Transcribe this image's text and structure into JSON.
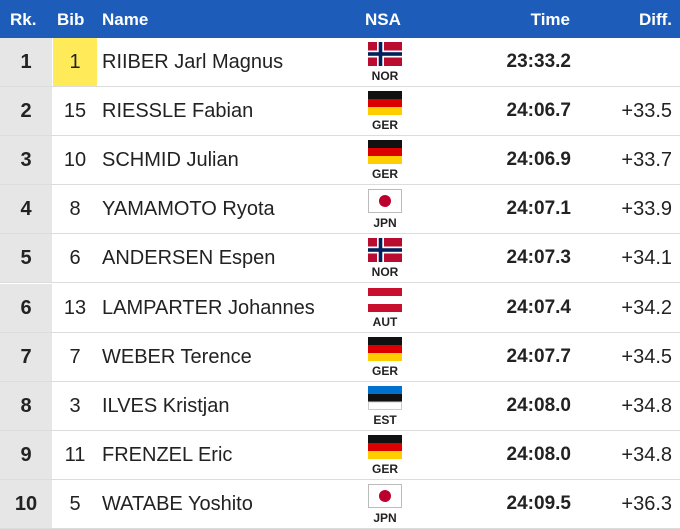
{
  "table": {
    "header": [
      "Rk.",
      "Bib",
      "Name",
      "NSA",
      "Time",
      "Diff."
    ],
    "rows": [
      {
        "rank": 1,
        "bib": 1,
        "name": "RIIBER Jarl Magnus",
        "nsa": "NOR",
        "time": "23:33.2"
      },
      {
        "rank": 2,
        "bib": 15,
        "name": "RIESSLE Fabian",
        "nsa": "GER",
        "time": "24:06.7",
        "diff": "+33.5"
      },
      {
        "rank": 3,
        "bib": 10,
        "name": "SCHMID Julian",
        "nsa": "GER",
        "time": "24:06.9",
        "diff": "+33.7"
      },
      {
        "rank": 4,
        "bib": 8,
        "name": "YAMAMOTO Ryota",
        "nsa": "JPN",
        "time": "24:07.1",
        "diff": "+33.9"
      },
      {
        "rank": 5,
        "bib": 6,
        "name": "ANDERSEN Espen",
        "nsa": "NOR",
        "time": "24:07.3",
        "diff": "+34.1"
      },
      {
        "rank": 6,
        "bib": 13,
        "name": "LAMPARTER Johannes",
        "nsa": "AUT",
        "time": "24:07.4",
        "diff": "+34.2"
      },
      {
        "rank": 7,
        "bib": 7,
        "name": "WEBER Terence",
        "nsa": "GER",
        "time": "24:07.7",
        "diff": "+34.5"
      },
      {
        "rank": 8,
        "bib": 3,
        "name": "ILVES Kristjan",
        "nsa": "EST",
        "time": "24:08.0",
        "diff": "+34.8"
      },
      {
        "rank": 9,
        "bib": 11,
        "name": "FRENZEL Eric",
        "nsa": "GER",
        "time": "24:08.0",
        "diff": "+34.8"
      },
      {
        "rank": 10,
        "bib": 5,
        "name": "WATABE Yoshito",
        "nsa": "JPN",
        "time": "24:09.5",
        "diff": "+36.3"
      }
    ]
  }
}
